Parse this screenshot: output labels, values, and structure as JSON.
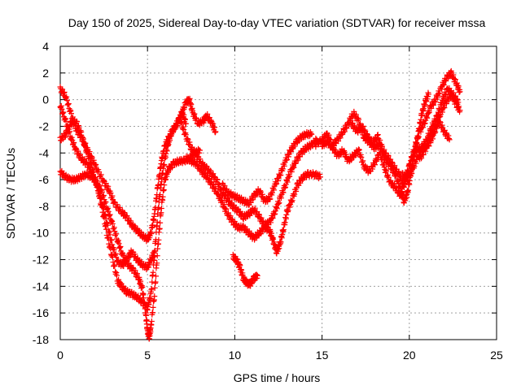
{
  "chart_data": {
    "type": "scatter",
    "title": "Day 150 of 2025, Sidereal Day-to-day VTEC variation (SDTVAR) for receiver mssa",
    "xlabel": "GPS time / hours",
    "ylabel": "SDTVAR / TECUs",
    "xlim": [
      0,
      25
    ],
    "ylim": [
      -18,
      4
    ],
    "xticks": [
      0,
      5,
      10,
      15,
      20,
      25
    ],
    "yticks": [
      -18,
      -16,
      -14,
      -12,
      -10,
      -8,
      -6,
      -4,
      -2,
      0,
      2,
      4
    ],
    "grid": true,
    "marker": "+",
    "series_color": "#ff0000",
    "series": [
      {
        "name": "track-1",
        "points": [
          [
            0.0,
            0.8
          ],
          [
            0.3,
            0.3
          ],
          [
            0.6,
            -1.0
          ],
          [
            0.9,
            -2.2
          ],
          [
            1.2,
            -2.8
          ],
          [
            1.5,
            -3.6
          ],
          [
            1.8,
            -4.4
          ],
          [
            2.1,
            -5.2
          ],
          [
            2.5,
            -6.2
          ],
          [
            2.8,
            -6.8
          ],
          [
            3.1,
            -7.8
          ],
          [
            3.5,
            -8.4
          ],
          [
            3.8,
            -8.8
          ],
          [
            4.1,
            -9.4
          ],
          [
            4.4,
            -9.8
          ],
          [
            4.7,
            -10.2
          ],
          [
            5.0,
            -10.5
          ],
          [
            5.2,
            -10.0
          ],
          [
            5.4,
            -8.6
          ],
          [
            5.6,
            -6.4
          ],
          [
            5.8,
            -4.6
          ],
          [
            6.0,
            -3.4
          ],
          [
            6.3,
            -2.6
          ],
          [
            6.6,
            -2.0
          ],
          [
            6.9,
            -1.2
          ],
          [
            7.2,
            -0.2
          ],
          [
            7.4,
            0.0
          ],
          [
            7.6,
            -1.0
          ],
          [
            7.9,
            -1.8
          ],
          [
            8.2,
            -1.6
          ],
          [
            8.4,
            -1.2
          ],
          [
            8.7,
            -1.8
          ],
          [
            8.9,
            -2.4
          ]
        ]
      },
      {
        "name": "track-2",
        "points": [
          [
            0.0,
            -3.0
          ],
          [
            0.3,
            -2.6
          ],
          [
            0.6,
            -1.8
          ],
          [
            0.9,
            -1.6
          ],
          [
            1.2,
            -2.6
          ],
          [
            1.5,
            -3.8
          ],
          [
            1.8,
            -5.0
          ],
          [
            2.1,
            -6.4
          ],
          [
            2.4,
            -8.2
          ],
          [
            2.7,
            -10.2
          ],
          [
            3.0,
            -12.0
          ],
          [
            3.3,
            -13.6
          ],
          [
            3.5,
            -14.0
          ],
          [
            3.8,
            -14.4
          ],
          [
            4.1,
            -14.6
          ],
          [
            4.4,
            -14.8
          ],
          [
            4.7,
            -15.2
          ],
          [
            5.0,
            -15.6
          ],
          [
            5.2,
            -14.6
          ],
          [
            5.4,
            -11.6
          ],
          [
            5.6,
            -8.4
          ],
          [
            5.8,
            -6.0
          ],
          [
            6.0,
            -4.4
          ],
          [
            6.2,
            -3.2
          ],
          [
            6.4,
            -2.4
          ],
          [
            6.7,
            -1.8
          ],
          [
            7.0,
            -1.0
          ],
          [
            7.2,
            -1.8
          ]
        ]
      },
      {
        "name": "track-3",
        "points": [
          [
            0.0,
            -5.4
          ],
          [
            0.3,
            -5.8
          ],
          [
            0.6,
            -6.0
          ],
          [
            0.9,
            -6.0
          ],
          [
            1.2,
            -5.8
          ],
          [
            1.5,
            -5.6
          ],
          [
            1.8,
            -5.8
          ],
          [
            2.1,
            -6.2
          ],
          [
            2.4,
            -7.0
          ],
          [
            2.7,
            -8.2
          ],
          [
            3.0,
            -9.4
          ],
          [
            3.3,
            -10.6
          ],
          [
            3.6,
            -11.8
          ],
          [
            3.9,
            -12.4
          ],
          [
            4.2,
            -12.8
          ],
          [
            4.5,
            -13.4
          ],
          [
            4.7,
            -14.2
          ],
          [
            4.9,
            -16.0
          ],
          [
            5.0,
            -17.4
          ],
          [
            5.1,
            -17.8
          ],
          [
            5.2,
            -17.0
          ],
          [
            5.4,
            -14.6
          ],
          [
            5.6,
            -11.0
          ],
          [
            5.8,
            -8.0
          ],
          [
            6.0,
            -6.0
          ],
          [
            6.2,
            -5.2
          ],
          [
            6.5,
            -4.8
          ],
          [
            6.8,
            -4.6
          ],
          [
            7.1,
            -4.6
          ],
          [
            7.4,
            -4.4
          ],
          [
            7.7,
            -4.0
          ],
          [
            8.0,
            -3.8
          ]
        ]
      },
      {
        "name": "track-4",
        "points": [
          [
            0.0,
            -0.4
          ],
          [
            0.3,
            -1.6
          ],
          [
            0.6,
            -2.8
          ],
          [
            0.9,
            -3.8
          ],
          [
            1.2,
            -4.4
          ],
          [
            1.5,
            -4.8
          ],
          [
            1.8,
            -5.4
          ],
          [
            2.1,
            -6.4
          ],
          [
            2.4,
            -7.8
          ],
          [
            2.7,
            -9.4
          ],
          [
            3.0,
            -11.0
          ],
          [
            3.3,
            -12.2
          ],
          [
            3.6,
            -12.4
          ],
          [
            3.9,
            -11.8
          ],
          [
            4.1,
            -11.4
          ],
          [
            4.4,
            -12.0
          ],
          [
            4.7,
            -12.4
          ],
          [
            5.0,
            -12.6
          ],
          [
            5.2,
            -12.0
          ],
          [
            5.4,
            -11.4
          ]
        ]
      },
      {
        "name": "track-5",
        "points": [
          [
            6.9,
            -1.6
          ],
          [
            7.2,
            -2.8
          ],
          [
            7.5,
            -3.6
          ],
          [
            7.8,
            -4.2
          ],
          [
            8.1,
            -4.8
          ],
          [
            8.4,
            -5.2
          ],
          [
            8.7,
            -5.6
          ],
          [
            9.0,
            -6.2
          ],
          [
            9.3,
            -7.0
          ],
          [
            9.6,
            -7.6
          ],
          [
            9.9,
            -8.0
          ],
          [
            10.2,
            -8.4
          ],
          [
            10.5,
            -8.8
          ],
          [
            10.8,
            -8.6
          ],
          [
            11.1,
            -8.2
          ],
          [
            11.4,
            -8.8
          ],
          [
            11.7,
            -9.4
          ],
          [
            12.0,
            -9.2
          ],
          [
            12.3,
            -8.4
          ],
          [
            12.6,
            -7.4
          ],
          [
            12.9,
            -6.4
          ],
          [
            13.2,
            -5.4
          ],
          [
            13.5,
            -4.6
          ],
          [
            13.8,
            -4.0
          ],
          [
            14.1,
            -3.6
          ],
          [
            14.4,
            -3.4
          ],
          [
            14.7,
            -3.0
          ]
        ]
      },
      {
        "name": "track-6",
        "points": [
          [
            7.2,
            -4.4
          ],
          [
            7.5,
            -4.6
          ],
          [
            7.8,
            -4.8
          ],
          [
            8.1,
            -5.4
          ],
          [
            8.4,
            -5.8
          ],
          [
            8.7,
            -6.4
          ],
          [
            9.0,
            -7.0
          ],
          [
            9.3,
            -7.8
          ],
          [
            9.6,
            -8.6
          ],
          [
            9.9,
            -9.2
          ],
          [
            10.2,
            -9.6
          ],
          [
            10.5,
            -9.6
          ],
          [
            10.8,
            -10.0
          ],
          [
            11.1,
            -10.4
          ],
          [
            11.4,
            -10.0
          ],
          [
            11.7,
            -9.6
          ],
          [
            12.0,
            -9.8
          ],
          [
            12.2,
            -10.6
          ],
          [
            12.4,
            -11.4
          ],
          [
            12.6,
            -10.8
          ],
          [
            12.8,
            -9.6
          ],
          [
            13.0,
            -8.4
          ],
          [
            13.3,
            -7.4
          ],
          [
            13.6,
            -6.4
          ],
          [
            13.9,
            -5.8
          ],
          [
            14.2,
            -5.6
          ],
          [
            14.6,
            -5.6
          ],
          [
            14.9,
            -5.8
          ]
        ]
      },
      {
        "name": "track-7",
        "points": [
          [
            9.3,
            -6.4
          ],
          [
            9.6,
            -7.0
          ],
          [
            9.9,
            -7.2
          ],
          [
            10.2,
            -7.4
          ],
          [
            10.5,
            -7.6
          ],
          [
            10.8,
            -7.8
          ],
          [
            11.1,
            -7.2
          ],
          [
            11.4,
            -6.8
          ],
          [
            11.7,
            -7.6
          ],
          [
            12.0,
            -7.4
          ],
          [
            12.3,
            -6.4
          ],
          [
            12.6,
            -5.6
          ],
          [
            12.9,
            -4.6
          ],
          [
            13.2,
            -3.8
          ],
          [
            13.5,
            -3.2
          ],
          [
            13.8,
            -2.8
          ],
          [
            14.1,
            -2.6
          ],
          [
            14.4,
            -2.6
          ]
        ]
      },
      {
        "name": "track-8",
        "points": [
          [
            9.9,
            -11.8
          ],
          [
            10.1,
            -12.0
          ],
          [
            10.3,
            -12.6
          ],
          [
            10.5,
            -13.4
          ],
          [
            10.7,
            -13.8
          ],
          [
            10.9,
            -13.8
          ],
          [
            11.1,
            -13.4
          ],
          [
            11.3,
            -13.2
          ]
        ]
      },
      {
        "name": "track-9",
        "points": [
          [
            14.6,
            -3.4
          ],
          [
            15.0,
            -3.0
          ],
          [
            15.3,
            -2.6
          ],
          [
            15.6,
            -3.4
          ],
          [
            15.9,
            -3.0
          ],
          [
            16.2,
            -2.4
          ],
          [
            16.5,
            -1.8
          ],
          [
            16.8,
            -1.0
          ],
          [
            17.1,
            -1.6
          ],
          [
            17.4,
            -2.8
          ],
          [
            17.7,
            -3.2
          ],
          [
            18.0,
            -3.6
          ],
          [
            18.3,
            -3.4
          ],
          [
            18.6,
            -4.4
          ],
          [
            18.9,
            -5.0
          ],
          [
            19.2,
            -5.6
          ],
          [
            19.5,
            -6.8
          ],
          [
            19.7,
            -7.6
          ],
          [
            19.9,
            -7.0
          ],
          [
            20.1,
            -5.4
          ],
          [
            20.3,
            -4.0
          ],
          [
            20.5,
            -2.6
          ],
          [
            20.7,
            -1.2
          ],
          [
            20.9,
            -0.2
          ],
          [
            21.1,
            0.4
          ]
        ]
      },
      {
        "name": "track-10",
        "points": [
          [
            15.0,
            -3.4
          ],
          [
            15.3,
            -3.2
          ],
          [
            15.6,
            -3.6
          ],
          [
            15.9,
            -4.2
          ],
          [
            16.2,
            -3.8
          ],
          [
            16.5,
            -4.6
          ],
          [
            16.8,
            -4.2
          ],
          [
            17.1,
            -3.8
          ],
          [
            17.4,
            -5.0
          ],
          [
            17.7,
            -5.4
          ],
          [
            18.0,
            -4.8
          ],
          [
            18.3,
            -4.0
          ],
          [
            18.6,
            -5.2
          ],
          [
            18.9,
            -6.2
          ],
          [
            19.2,
            -6.6
          ],
          [
            19.5,
            -7.2
          ],
          [
            19.8,
            -5.8
          ],
          [
            20.1,
            -4.6
          ],
          [
            20.4,
            -3.8
          ],
          [
            20.7,
            -3.6
          ],
          [
            21.0,
            -3.0
          ],
          [
            21.3,
            -2.0
          ],
          [
            21.6,
            -1.2
          ],
          [
            21.9,
            0.0
          ],
          [
            22.2,
            0.8
          ],
          [
            22.5,
            0.4
          ],
          [
            22.8,
            -0.2
          ]
        ]
      },
      {
        "name": "track-11",
        "points": [
          [
            16.7,
            -1.8
          ],
          [
            17.0,
            -2.4
          ],
          [
            17.3,
            -2.0
          ],
          [
            17.6,
            -2.8
          ],
          [
            17.9,
            -3.2
          ],
          [
            18.2,
            -2.8
          ],
          [
            18.5,
            -3.8
          ],
          [
            18.8,
            -4.4
          ],
          [
            19.1,
            -5.0
          ],
          [
            19.4,
            -5.6
          ],
          [
            19.7,
            -6.4
          ],
          [
            20.0,
            -5.0
          ],
          [
            20.3,
            -3.6
          ],
          [
            20.6,
            -2.4
          ],
          [
            20.9,
            -1.6
          ],
          [
            21.2,
            -0.6
          ],
          [
            21.5,
            0.0
          ],
          [
            21.8,
            0.8
          ],
          [
            22.1,
            1.6
          ],
          [
            22.4,
            2.0
          ],
          [
            22.7,
            1.2
          ],
          [
            22.9,
            0.6
          ]
        ]
      },
      {
        "name": "track-12",
        "points": [
          [
            20.6,
            -4.4
          ],
          [
            20.9,
            -3.8
          ],
          [
            21.2,
            -2.8
          ],
          [
            21.5,
            -2.0
          ],
          [
            21.8,
            -1.0
          ],
          [
            22.1,
            -0.2
          ],
          [
            22.4,
            0.4
          ],
          [
            22.7,
            -0.4
          ],
          [
            22.9,
            -0.8
          ]
        ]
      },
      {
        "name": "track-13",
        "points": [
          [
            19.6,
            -5.6
          ],
          [
            19.9,
            -6.0
          ],
          [
            20.2,
            -5.2
          ],
          [
            20.5,
            -4.2
          ],
          [
            20.8,
            -3.6
          ],
          [
            21.1,
            -3.4
          ],
          [
            21.4,
            -2.6
          ],
          [
            21.7,
            -1.6
          ],
          [
            22.0,
            -2.4
          ],
          [
            22.3,
            -3.0
          ]
        ]
      }
    ]
  }
}
